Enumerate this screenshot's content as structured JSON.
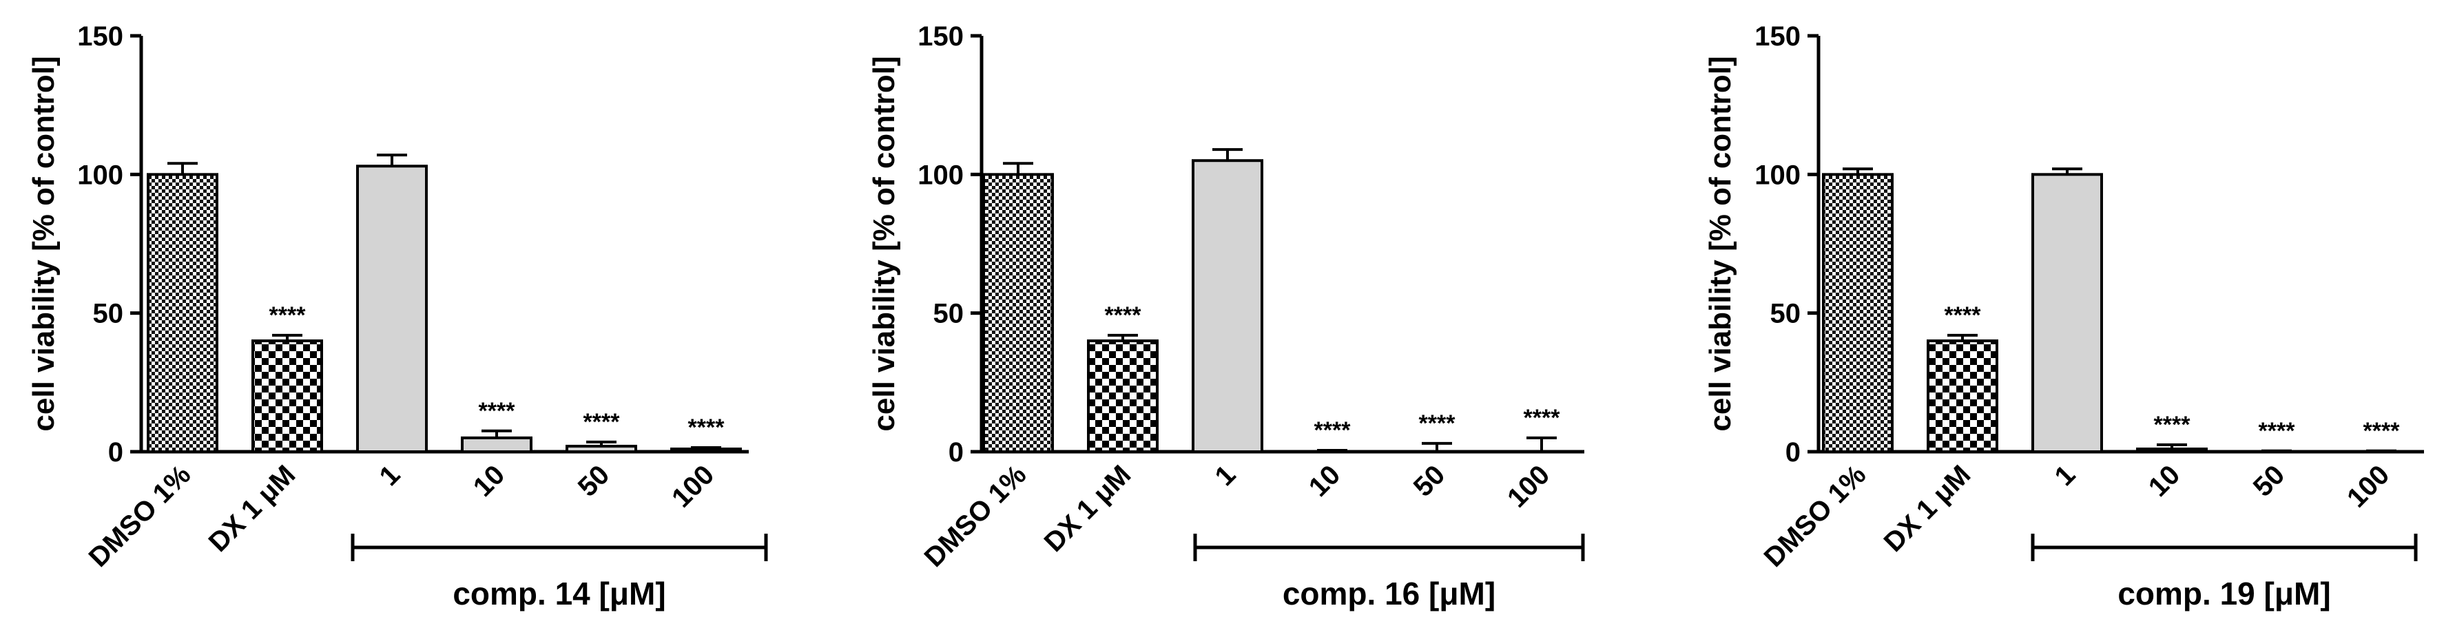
{
  "chart_data": [
    {
      "type": "bar",
      "ylabel": "cell viability [% of control]",
      "ylim": [
        0,
        150
      ],
      "yticks": [
        0,
        50,
        100,
        150
      ],
      "categories": [
        "DMSO 1%",
        "DX 1 μM",
        "1",
        "10",
        "50",
        "100"
      ],
      "values": [
        100,
        40,
        103,
        5,
        2,
        1
      ],
      "errors": [
        4,
        2,
        4,
        2.5,
        1.5,
        0.5
      ],
      "significance": [
        "",
        "****",
        "",
        "****",
        "****",
        "****"
      ],
      "patterns": [
        "fine-check",
        "coarse-check",
        "gray",
        "gray",
        "gray",
        "gray"
      ],
      "group_label": "comp. 14 [μM]"
    },
    {
      "type": "bar",
      "ylabel": "cell viability [% of control]",
      "ylim": [
        0,
        150
      ],
      "yticks": [
        0,
        50,
        100,
        150
      ],
      "categories": [
        "DMSO 1%",
        "DX 1 μM",
        "1",
        "10",
        "50",
        "100"
      ],
      "values": [
        100,
        40,
        105,
        0,
        0,
        0
      ],
      "errors": [
        4,
        2,
        4,
        0.5,
        3,
        5
      ],
      "significance": [
        "",
        "****",
        "",
        "****",
        "****",
        "****"
      ],
      "patterns": [
        "fine-check",
        "coarse-check",
        "gray",
        "gray",
        "gray",
        "gray"
      ],
      "group_label": "comp. 16 [μM]"
    },
    {
      "type": "bar",
      "ylabel": "cell viability [% of control]",
      "ylim": [
        0,
        150
      ],
      "yticks": [
        0,
        50,
        100,
        150
      ],
      "categories": [
        "DMSO 1%",
        "DX 1 μM",
        "1",
        "10",
        "50",
        "100"
      ],
      "values": [
        100,
        40,
        100,
        1,
        0,
        0
      ],
      "errors": [
        2,
        2,
        2,
        1.5,
        0.3,
        0.3
      ],
      "significance": [
        "",
        "****",
        "",
        "****",
        "****",
        "****"
      ],
      "patterns": [
        "fine-check",
        "coarse-check",
        "gray",
        "gray",
        "gray",
        "gray"
      ],
      "group_label": "comp. 19 [μM]"
    }
  ],
  "colors": {
    "axis": "#000000",
    "bar_gray": "#d4d4d4",
    "pattern_dark": "#000000",
    "pattern_light": "#ffffff"
  }
}
